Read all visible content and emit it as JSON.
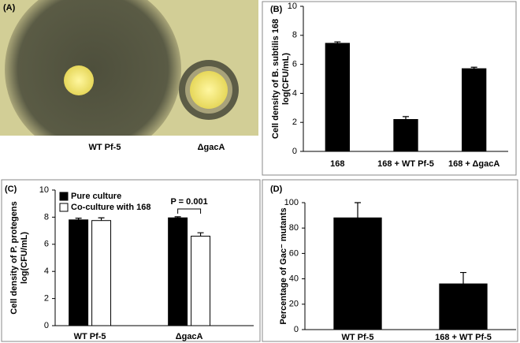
{
  "photo": {
    "label": "(A)",
    "captions": [
      "WT Pf-5",
      "ΔgacA"
    ]
  },
  "chart_data": [
    {
      "type": "bar",
      "label": "(B)",
      "ylabel": [
        "Cell density of B. subtilis 168",
        "log(CFU/mL)"
      ],
      "categories": [
        "168",
        "168 + WT Pf-5",
        "168 + ΔgacA"
      ],
      "values": [
        7.45,
        2.2,
        5.7
      ],
      "errors": [
        0.1,
        0.2,
        0.1
      ],
      "color": "#000000",
      "ylim": [
        0,
        10
      ],
      "yticks": [
        0,
        2,
        4,
        6,
        8,
        10
      ]
    },
    {
      "type": "grouped_bar",
      "label": "(C)",
      "ylabel": [
        "Cell density of P. protegens",
        "log(CFU/mL)"
      ],
      "categories": [
        "WT Pf-5",
        "ΔgacA"
      ],
      "series": [
        {
          "name": "Pure culture",
          "color": "#000000",
          "values": [
            7.8,
            7.95
          ],
          "errors": [
            0.12,
            0.08
          ]
        },
        {
          "name": "Co-culture with 168",
          "color": "#ffffff",
          "values": [
            7.75,
            6.6
          ],
          "errors": [
            0.2,
            0.25
          ]
        }
      ],
      "annotation": "P = 0.001",
      "legend": "upper left",
      "ylim": [
        0,
        10
      ],
      "yticks": [
        0,
        2,
        4,
        6,
        8,
        10
      ]
    },
    {
      "type": "bar",
      "label": "(D)",
      "ylabel": [
        "Percentage of Gac⁻ mutants"
      ],
      "categories": [
        "WT Pf-5",
        "168 + WT Pf-5"
      ],
      "values": [
        88,
        36
      ],
      "errors": [
        12,
        9
      ],
      "color": "#000000",
      "ylim": [
        0,
        100
      ],
      "yticks": [
        0,
        20,
        40,
        60,
        80,
        100
      ]
    }
  ]
}
